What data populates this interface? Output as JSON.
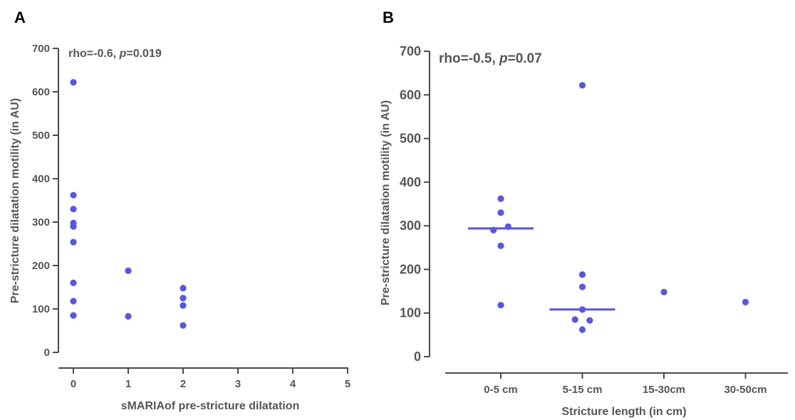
{
  "chart_data": [
    {
      "type": "scatter",
      "panel_label": "A",
      "title": "",
      "annotation": {
        "prefix": "rho=-0.6, ",
        "italic": "p",
        "suffix": "=0.019"
      },
      "xlabel": "sMARIAof pre-stricture dilatation",
      "ylabel": "Pre-stricture dilatation motility (in AU)",
      "xlim": [
        0,
        5
      ],
      "ylim": [
        0,
        700
      ],
      "x_ticks": [
        "0",
        "1",
        "2",
        "3",
        "4",
        "5"
      ],
      "y_ticks": [
        "0",
        "100",
        "200",
        "300",
        "400",
        "500",
        "600",
        "700"
      ],
      "grid": false,
      "point_color": "#5555ee",
      "points": [
        {
          "x": 0,
          "y": 622
        },
        {
          "x": 0,
          "y": 362
        },
        {
          "x": 0,
          "y": 330
        },
        {
          "x": 0,
          "y": 298
        },
        {
          "x": 0,
          "y": 290
        },
        {
          "x": 0,
          "y": 254
        },
        {
          "x": 0,
          "y": 160
        },
        {
          "x": 0,
          "y": 118
        },
        {
          "x": 0,
          "y": 85
        },
        {
          "x": 1,
          "y": 188
        },
        {
          "x": 1,
          "y": 83
        },
        {
          "x": 2,
          "y": 148
        },
        {
          "x": 2,
          "y": 125
        },
        {
          "x": 2,
          "y": 108
        },
        {
          "x": 2,
          "y": 62
        }
      ]
    },
    {
      "type": "scatter",
      "panel_label": "B",
      "title": "",
      "annotation": {
        "prefix": "rho=-0.5, ",
        "italic": "p",
        "suffix": "=0.07"
      },
      "xlabel": "Stricture length (in cm)",
      "ylabel": "Pre-stricture dilatation motility (in AU)",
      "categories": [
        "0-5 cm",
        "5-15 cm",
        "15-30cm",
        "30-50cm"
      ],
      "ylim": [
        0,
        700
      ],
      "y_ticks": [
        "0",
        "100",
        "200",
        "300",
        "400",
        "500",
        "600",
        "700"
      ],
      "grid": false,
      "point_color": "#5555ee",
      "medians": [
        {
          "category": "0-5 cm",
          "value": 294
        },
        {
          "category": "5-15 cm",
          "value": 108
        }
      ],
      "points": [
        {
          "category": "0-5 cm",
          "offset": 0,
          "y": 362
        },
        {
          "category": "0-5 cm",
          "offset": 0,
          "y": 330
        },
        {
          "category": "0-5 cm",
          "offset": 0.09,
          "y": 298
        },
        {
          "category": "0-5 cm",
          "offset": -0.09,
          "y": 290
        },
        {
          "category": "0-5 cm",
          "offset": 0,
          "y": 254
        },
        {
          "category": "0-5 cm",
          "offset": 0,
          "y": 118
        },
        {
          "category": "5-15 cm",
          "offset": 0,
          "y": 622
        },
        {
          "category": "5-15 cm",
          "offset": 0,
          "y": 188
        },
        {
          "category": "5-15 cm",
          "offset": 0,
          "y": 160
        },
        {
          "category": "5-15 cm",
          "offset": 0,
          "y": 108
        },
        {
          "category": "5-15 cm",
          "offset": -0.09,
          "y": 85
        },
        {
          "category": "5-15 cm",
          "offset": 0.09,
          "y": 83
        },
        {
          "category": "5-15 cm",
          "offset": 0,
          "y": 62
        },
        {
          "category": "15-30cm",
          "offset": 0,
          "y": 148
        },
        {
          "category": "30-50cm",
          "offset": 0,
          "y": 125
        }
      ]
    }
  ]
}
